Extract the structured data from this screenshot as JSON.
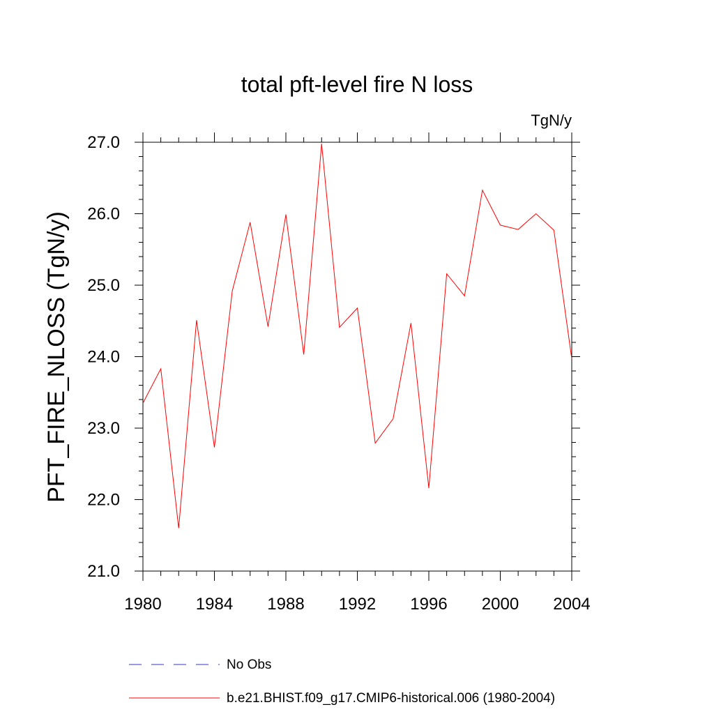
{
  "chart_data": {
    "type": "line",
    "title": "total pft-level fire N loss",
    "units_label": "TgN/y",
    "ylabel": "PFT_FIRE_NLOSS  (TgN/y)",
    "xlabel": "",
    "xlim": [
      1980,
      2004
    ],
    "ylim": [
      21.0,
      27.0
    ],
    "xticks": [
      "1980",
      "1984",
      "1988",
      "1992",
      "1996",
      "2000",
      "2004"
    ],
    "yticks": [
      "21.0",
      "22.0",
      "23.0",
      "24.0",
      "25.0",
      "26.0",
      "27.0"
    ],
    "grid": false,
    "legend_position": "bottom",
    "series": [
      {
        "name": "b.e21.BHIST.f09_g17.CMIP6-historical.006 (1980-2004)",
        "color": "#ff0000",
        "style": "solid",
        "x": [
          1980,
          1981,
          1982,
          1983,
          1984,
          1985,
          1986,
          1987,
          1988,
          1989,
          1990,
          1991,
          1992,
          1993,
          1994,
          1995,
          1996,
          1997,
          1998,
          1999,
          2000,
          2001,
          2002,
          2003,
          2004
        ],
        "values": [
          23.35,
          23.83,
          21.6,
          24.51,
          22.73,
          24.92,
          25.88,
          24.42,
          25.99,
          24.03,
          26.98,
          24.41,
          24.68,
          22.79,
          23.13,
          24.47,
          22.16,
          25.16,
          24.85,
          26.33,
          25.84,
          25.78,
          26.0,
          25.77,
          23.97
        ]
      },
      {
        "name": "No Obs",
        "color": "#3333cc",
        "style": "dashed",
        "x": [],
        "values": []
      }
    ]
  }
}
